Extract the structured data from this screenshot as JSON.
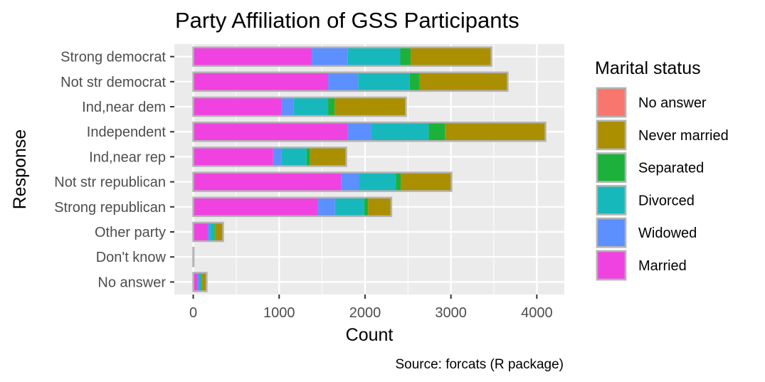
{
  "chart_data": {
    "type": "bar",
    "orientation": "horizontal",
    "stacked": true,
    "title": "Party Affiliation of GSS Participants",
    "xlabel": "Count",
    "ylabel": "Response",
    "caption": "Source: forcats (R package)",
    "xlim": [
      -220,
      4320
    ],
    "x_ticks": [
      0,
      1000,
      2000,
      3000,
      4000
    ],
    "x_tick_labels": [
      "0",
      "1000",
      "2000",
      "3000",
      "4000"
    ],
    "grid": true,
    "legend_position": "right",
    "legend_title": "Marital status",
    "categories": [
      "Strong democrat",
      "Not str democrat",
      "Ind,near dem",
      "Independent",
      "Ind,near rep",
      "Not str republican",
      "Strong republican",
      "Other party",
      "Don't know",
      "No answer"
    ],
    "stack_order": [
      "Married",
      "Widowed",
      "Divorced",
      "Separated",
      "Never married",
      "No answer"
    ],
    "legend_order": [
      "No answer",
      "Never married",
      "Separated",
      "Divorced",
      "Widowed",
      "Married"
    ],
    "series": [
      {
        "name": "Married",
        "color": "#F042E0",
        "values": [
          1380,
          1570,
          1030,
          1800,
          930,
          1720,
          1450,
          170,
          0,
          50
        ]
      },
      {
        "name": "Widowed",
        "color": "#5C8FFF",
        "values": [
          420,
          350,
          140,
          270,
          100,
          210,
          200,
          25,
          0,
          15
        ]
      },
      {
        "name": "Divorced",
        "color": "#17B8BC",
        "values": [
          610,
          600,
          400,
          670,
          290,
          430,
          340,
          50,
          0,
          30
        ]
      },
      {
        "name": "Separated",
        "color": "#1CB13B",
        "values": [
          120,
          110,
          75,
          190,
          40,
          55,
          45,
          8,
          0,
          5
        ]
      },
      {
        "name": "Never married",
        "color": "#AA8F00",
        "values": [
          940,
          1030,
          830,
          1170,
          420,
          590,
          270,
          95,
          1,
          55
        ]
      },
      {
        "name": "No answer",
        "color": "#F8766D",
        "values": [
          1,
          1,
          1,
          1,
          1,
          1,
          1,
          0,
          0,
          1
        ]
      }
    ]
  }
}
